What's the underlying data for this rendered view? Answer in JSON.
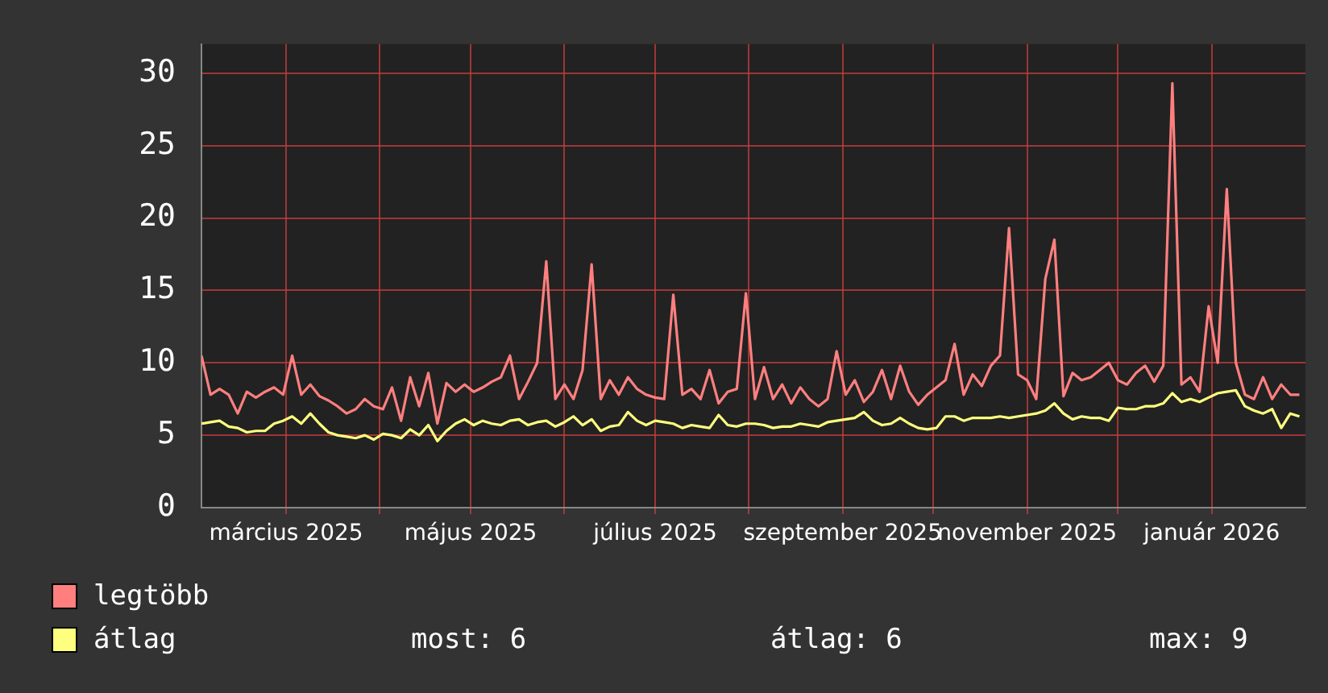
{
  "chart_data": {
    "type": "line",
    "x": [
      "2025-02-01",
      "2025-02-04",
      "2025-02-07",
      "2025-02-10",
      "2025-02-13",
      "2025-02-16",
      "2025-02-19",
      "2025-02-22",
      "2025-02-25",
      "2025-02-28",
      "2025-03-03",
      "2025-03-06",
      "2025-03-09",
      "2025-03-12",
      "2025-03-15",
      "2025-03-18",
      "2025-03-21",
      "2025-03-24",
      "2025-03-27",
      "2025-03-30",
      "2025-04-02",
      "2025-04-05",
      "2025-04-08",
      "2025-04-11",
      "2025-04-14",
      "2025-04-17",
      "2025-04-20",
      "2025-04-23",
      "2025-04-26",
      "2025-04-29",
      "2025-05-02",
      "2025-05-05",
      "2025-05-08",
      "2025-05-11",
      "2025-05-14",
      "2025-05-17",
      "2025-05-20",
      "2025-05-23",
      "2025-05-26",
      "2025-05-29",
      "2025-06-01",
      "2025-06-04",
      "2025-06-07",
      "2025-06-10",
      "2025-06-13",
      "2025-06-16",
      "2025-06-19",
      "2025-06-22",
      "2025-06-25",
      "2025-06-28",
      "2025-07-01",
      "2025-07-04",
      "2025-07-07",
      "2025-07-10",
      "2025-07-13",
      "2025-07-16",
      "2025-07-19",
      "2025-07-22",
      "2025-07-25",
      "2025-07-28",
      "2025-07-31",
      "2025-08-03",
      "2025-08-06",
      "2025-08-09",
      "2025-08-12",
      "2025-08-15",
      "2025-08-18",
      "2025-08-21",
      "2025-08-24",
      "2025-08-27",
      "2025-08-30",
      "2025-09-02",
      "2025-09-05",
      "2025-09-08",
      "2025-09-11",
      "2025-09-14",
      "2025-09-17",
      "2025-09-20",
      "2025-09-23",
      "2025-09-26",
      "2025-09-29",
      "2025-10-02",
      "2025-10-05",
      "2025-10-08",
      "2025-10-11",
      "2025-10-14",
      "2025-10-17",
      "2025-10-20",
      "2025-10-23",
      "2025-10-26",
      "2025-10-29",
      "2025-11-01",
      "2025-11-04",
      "2025-11-07",
      "2025-11-10",
      "2025-11-13",
      "2025-11-16",
      "2025-11-19",
      "2025-11-22",
      "2025-11-25",
      "2025-11-28",
      "2025-12-01",
      "2025-12-04",
      "2025-12-07",
      "2025-12-10",
      "2025-12-13",
      "2025-12-16",
      "2025-12-19",
      "2025-12-22",
      "2025-12-25",
      "2025-12-28",
      "2025-12-31",
      "2026-01-03",
      "2026-01-06",
      "2026-01-09",
      "2026-01-12",
      "2026-01-15",
      "2026-01-18",
      "2026-01-21",
      "2026-01-24",
      "2026-01-27",
      "2026-01-30"
    ],
    "series": [
      {
        "name": "legtöbb",
        "color": "#ff7f7f",
        "values": [
          10.5,
          7.8,
          8.2,
          7.8,
          6.5,
          8.0,
          7.6,
          8.0,
          8.3,
          7.8,
          10.5,
          7.8,
          8.5,
          7.7,
          7.4,
          7.0,
          6.5,
          6.8,
          7.5,
          7.0,
          6.8,
          8.3,
          6.0,
          9.0,
          7.0,
          9.3,
          5.8,
          8.6,
          8.0,
          8.5,
          8.0,
          8.3,
          8.7,
          9.0,
          10.5,
          7.5,
          8.7,
          10.0,
          17.0,
          7.5,
          8.5,
          7.5,
          9.5,
          16.8,
          7.5,
          8.8,
          7.8,
          9.0,
          8.2,
          7.8,
          7.6,
          7.5,
          14.7,
          7.8,
          8.2,
          7.5,
          9.5,
          7.2,
          8.0,
          8.2,
          14.8,
          7.5,
          9.7,
          7.5,
          8.5,
          7.2,
          8.3,
          7.5,
          7.0,
          7.5,
          10.8,
          7.8,
          8.8,
          7.3,
          8.0,
          9.5,
          7.5,
          9.8,
          8.0,
          7.1,
          7.8,
          8.3,
          8.8,
          11.3,
          7.8,
          9.2,
          8.4,
          9.8,
          10.5,
          19.3,
          9.2,
          8.8,
          7.5,
          15.8,
          18.5,
          7.7,
          9.3,
          8.8,
          9.0,
          9.5,
          10.0,
          8.8,
          8.5,
          9.3,
          9.8,
          8.7,
          9.8,
          29.3,
          8.5,
          9.0,
          8.0,
          13.9,
          10.0,
          22.0,
          10.0,
          7.8,
          7.5,
          9.0,
          7.5,
          8.5,
          7.8,
          7.8
        ]
      },
      {
        "name": "átlag",
        "color": "#ffff7f",
        "values": [
          5.8,
          5.9,
          6.0,
          5.6,
          5.5,
          5.2,
          5.3,
          5.3,
          5.8,
          6.0,
          6.3,
          5.8,
          6.5,
          5.8,
          5.2,
          5.0,
          4.9,
          4.8,
          5.0,
          4.7,
          5.1,
          5.0,
          4.8,
          5.4,
          5.0,
          5.7,
          4.6,
          5.3,
          5.8,
          6.1,
          5.7,
          6.0,
          5.8,
          5.7,
          6.0,
          6.1,
          5.7,
          5.9,
          6.0,
          5.6,
          5.9,
          6.3,
          5.7,
          6.1,
          5.3,
          5.6,
          5.7,
          6.6,
          6.0,
          5.7,
          6.0,
          5.9,
          5.8,
          5.5,
          5.7,
          5.6,
          5.5,
          6.4,
          5.7,
          5.6,
          5.8,
          5.8,
          5.7,
          5.5,
          5.6,
          5.6,
          5.8,
          5.7,
          5.6,
          5.9,
          6.0,
          6.1,
          6.2,
          6.6,
          6.0,
          5.7,
          5.8,
          6.2,
          5.8,
          5.5,
          5.4,
          5.5,
          6.3,
          6.3,
          6.0,
          6.2,
          6.2,
          6.2,
          6.3,
          6.2,
          6.3,
          6.4,
          6.5,
          6.7,
          7.2,
          6.5,
          6.1,
          6.3,
          6.2,
          6.2,
          6.0,
          6.9,
          6.8,
          6.8,
          7.0,
          7.0,
          7.2,
          7.9,
          7.3,
          7.5,
          7.3,
          7.6,
          7.9,
          8.0,
          8.1,
          7.0,
          6.7,
          6.5,
          6.8,
          5.5,
          6.5,
          6.3
        ]
      }
    ],
    "xlim": [
      "2025-02-01",
      "2026-02-01"
    ],
    "xticks": [
      {
        "value": "2025-03-01",
        "label": "március 2025"
      },
      {
        "value": "2025-04-01",
        "label": null
      },
      {
        "value": "2025-05-01",
        "label": "május 2025"
      },
      {
        "value": "2025-06-01",
        "label": null
      },
      {
        "value": "2025-07-01",
        "label": "július 2025"
      },
      {
        "value": "2025-08-01",
        "label": null
      },
      {
        "value": "2025-09-01",
        "label": "szeptember 2025"
      },
      {
        "value": "2025-10-01",
        "label": null
      },
      {
        "value": "2025-11-01",
        "label": "november 2025"
      },
      {
        "value": "2025-12-01",
        "label": null
      },
      {
        "value": "2026-01-01",
        "label": "január 2026"
      }
    ],
    "ylim": [
      0,
      32
    ],
    "yticks": [
      0,
      5,
      10,
      15,
      20,
      25,
      30
    ],
    "grid": true,
    "legend": "bottom left",
    "marker": "none",
    "line_style": "solid",
    "annotations": [
      "most: 6",
      "átlag: 6",
      "max: 9"
    ]
  }
}
